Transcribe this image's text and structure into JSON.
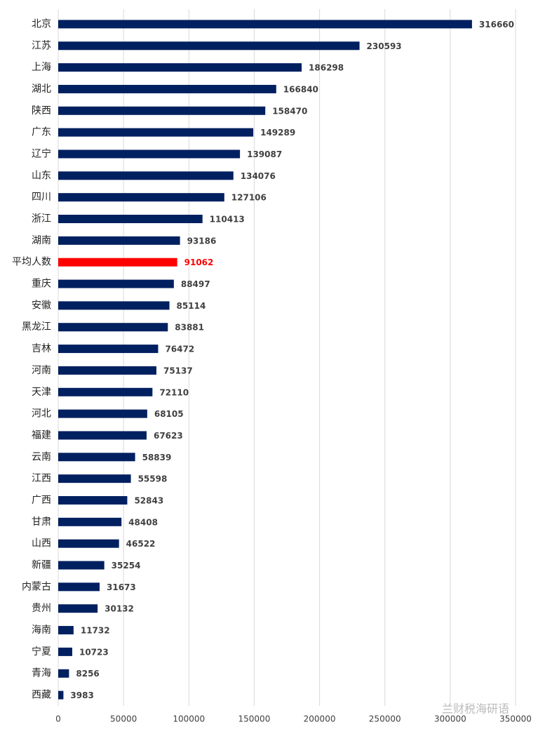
{
  "chart_data": {
    "type": "barh",
    "categories": [
      "北京",
      "江苏",
      "上海",
      "湖北",
      "陕西",
      "广东",
      "辽宁",
      "山东",
      "四川",
      "浙江",
      "湖南",
      "平均人数",
      "重庆",
      "安徽",
      "黑龙江",
      "吉林",
      "河南",
      "天津",
      "河北",
      "福建",
      "云南",
      "江西",
      "广西",
      "甘肃",
      "山西",
      "新疆",
      "内蒙古",
      "贵州",
      "海南",
      "宁夏",
      "青海",
      "西藏"
    ],
    "values": [
      316660,
      230593,
      186298,
      166840,
      158470,
      149289,
      139087,
      134076,
      127106,
      110413,
      93186,
      91062,
      88497,
      85114,
      83881,
      76472,
      75137,
      72110,
      68105,
      67623,
      58839,
      55598,
      52843,
      48408,
      46522,
      35254,
      31673,
      30132,
      11732,
      10723,
      8256,
      3983
    ],
    "colors": [
      "#002060",
      "#002060",
      "#002060",
      "#002060",
      "#002060",
      "#002060",
      "#002060",
      "#002060",
      "#002060",
      "#002060",
      "#002060",
      "#ff0000",
      "#002060",
      "#002060",
      "#002060",
      "#002060",
      "#002060",
      "#002060",
      "#002060",
      "#002060",
      "#002060",
      "#002060",
      "#002060",
      "#002060",
      "#002060",
      "#002060",
      "#002060",
      "#002060",
      "#002060",
      "#002060",
      "#002060",
      "#002060"
    ],
    "xlim": [
      0,
      350000
    ],
    "xticks": [
      0,
      50000,
      100000,
      150000,
      200000,
      250000,
      300000,
      350000
    ],
    "grid": true,
    "watermark": "兰财税海研语"
  }
}
